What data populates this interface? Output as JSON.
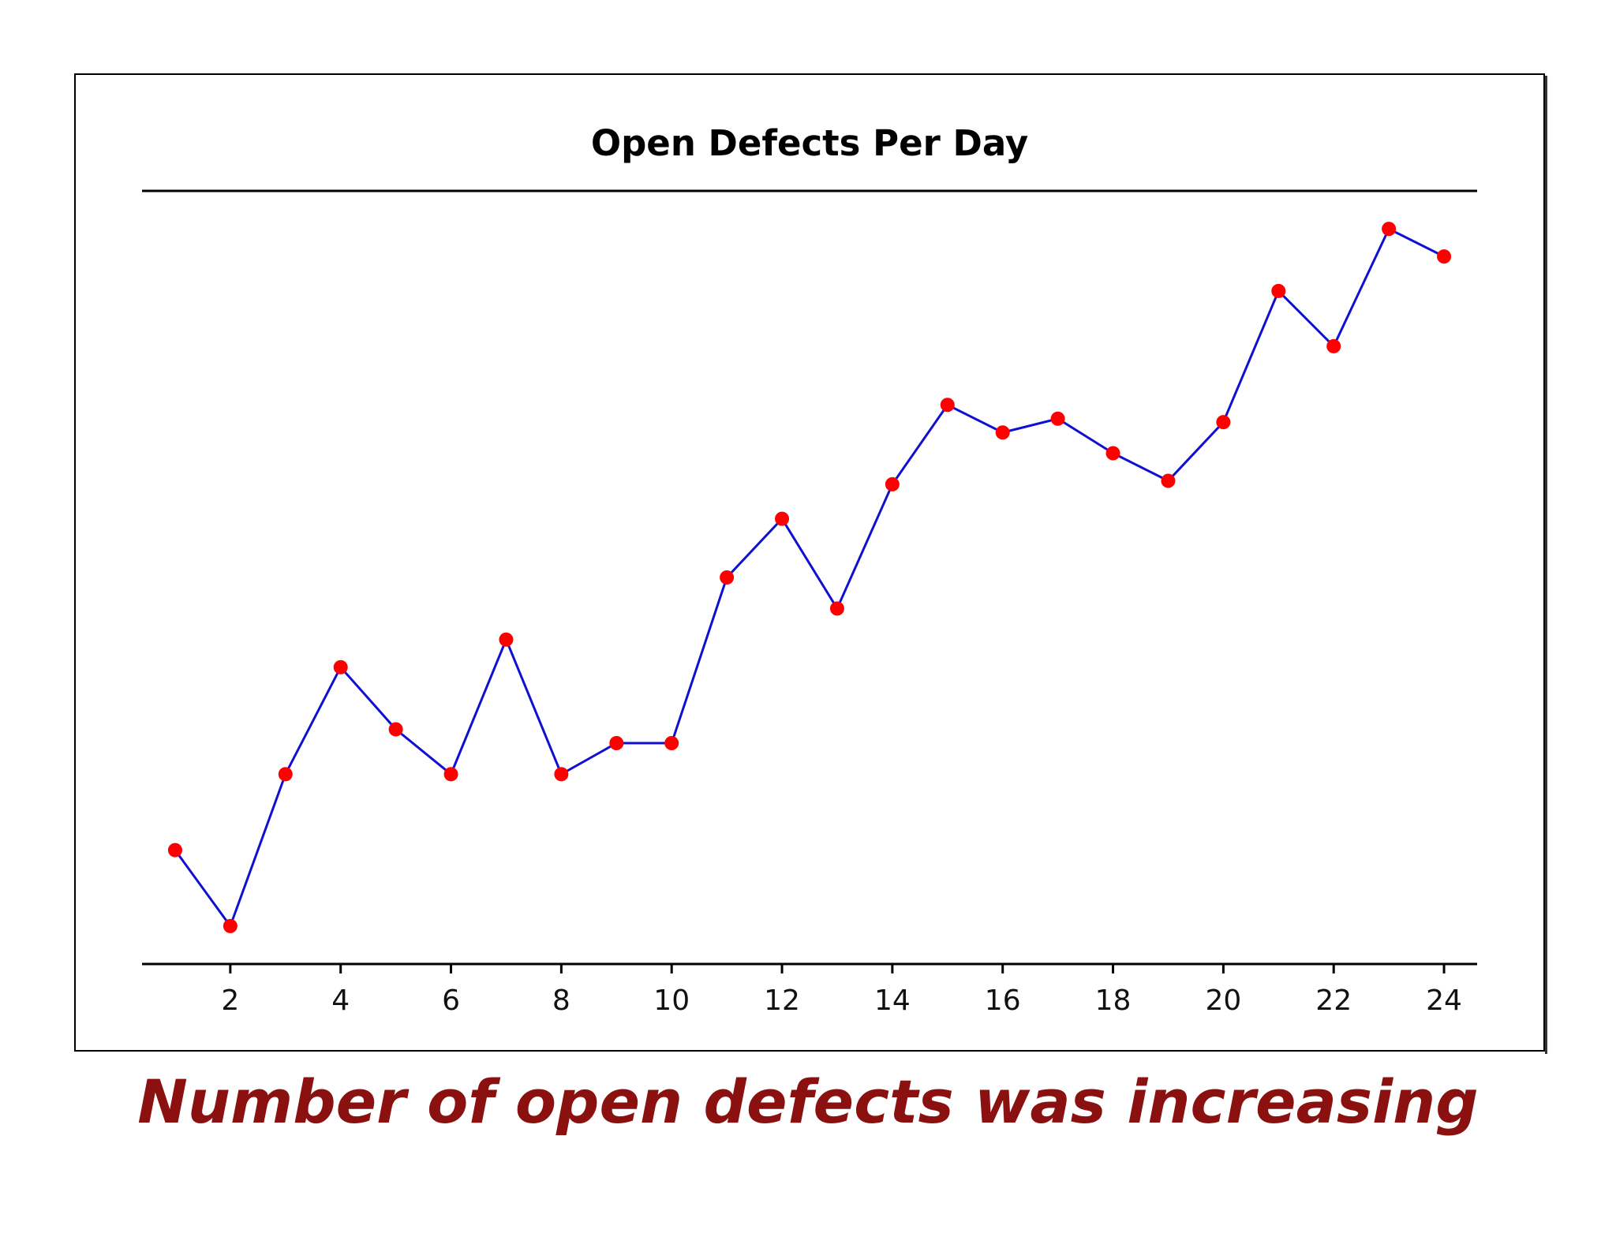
{
  "chart_data": {
    "type": "line",
    "title": "Open Defects Per Day",
    "xlabel": "",
    "ylabel": "",
    "x": [
      1,
      2,
      3,
      4,
      5,
      6,
      7,
      8,
      9,
      10,
      11,
      12,
      13,
      14,
      15,
      16,
      17,
      18,
      19,
      20,
      21,
      22,
      23,
      24
    ],
    "x_tick_labels": [
      "2",
      "4",
      "6",
      "8",
      "10",
      "12",
      "14",
      "16",
      "18",
      "20",
      "22",
      "24"
    ],
    "x_tick_values": [
      2,
      4,
      6,
      8,
      10,
      12,
      14,
      16,
      18,
      20,
      22,
      24
    ],
    "series": [
      {
        "name": "Open defects",
        "values": [
          5.6,
          3.4,
          7.8,
          10.9,
          9.1,
          7.8,
          11.7,
          7.8,
          8.7,
          8.7,
          13.5,
          15.2,
          12.6,
          16.2,
          18.5,
          17.7,
          18.1,
          17.1,
          16.3,
          18.0,
          21.8,
          20.2,
          23.6,
          22.8
        ],
        "line_color": "#1010d0",
        "marker_color": "#ff0000"
      }
    ],
    "xlim": [
      0.4,
      24.6
    ],
    "ylim": [
      2.3,
      24.7
    ],
    "grid": false,
    "legend": "none"
  },
  "caption": "Number of open defects was increasing"
}
